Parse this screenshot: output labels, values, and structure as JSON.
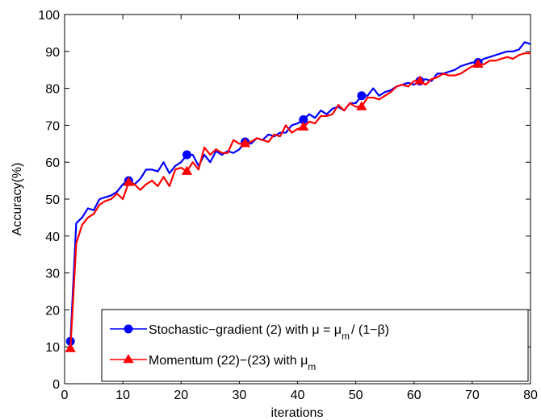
{
  "chart_data": {
    "type": "line",
    "xlabel": "iterations",
    "ylabel": "Accuracy(%)",
    "xlim": [
      0,
      80
    ],
    "ylim": [
      0,
      100
    ],
    "xticks": [
      0,
      10,
      20,
      30,
      40,
      50,
      60,
      70,
      80
    ],
    "yticks": [
      0,
      10,
      20,
      30,
      40,
      50,
      60,
      70,
      80,
      90,
      100
    ],
    "grid": false,
    "legend_position": "bottom-right",
    "series": [
      {
        "name": "Stochastic−gradient (2) with μ = μ",
        "name_sub": "m",
        "name_suffix": "/ (1−β)",
        "color": "#0000ff",
        "marker": "circle",
        "x": [
          1,
          2,
          3,
          4,
          5,
          6,
          7,
          8,
          9,
          10,
          11,
          12,
          13,
          14,
          15,
          16,
          17,
          18,
          19,
          20,
          21,
          22,
          23,
          24,
          25,
          26,
          27,
          28,
          29,
          30,
          31,
          32,
          33,
          34,
          35,
          36,
          37,
          38,
          39,
          40,
          41,
          42,
          43,
          44,
          45,
          46,
          47,
          48,
          49,
          50,
          51,
          52,
          53,
          54,
          55,
          56,
          57,
          58,
          59,
          60,
          61,
          62,
          63,
          64,
          65,
          66,
          67,
          68,
          69,
          70,
          71,
          72,
          73,
          74,
          75,
          76,
          77,
          78,
          79,
          80
        ],
        "y": [
          11.5,
          43.5,
          45,
          47.5,
          47,
          50,
          50.5,
          51,
          52,
          54,
          55,
          54,
          55.5,
          58,
          58,
          57.5,
          60,
          57,
          59,
          60,
          62,
          62,
          59,
          62,
          60,
          63,
          62,
          63,
          62.5,
          63.5,
          65.5,
          65,
          66.5,
          66,
          67.5,
          67,
          68,
          68,
          70,
          70.5,
          71.5,
          73,
          72,
          74,
          73,
          74.5,
          75,
          74,
          76,
          76,
          78,
          78,
          80,
          78,
          79,
          79.5,
          80.5,
          81,
          81.5,
          81,
          82,
          82.5,
          82,
          84,
          84,
          84.5,
          85,
          86,
          86.5,
          87,
          87,
          88,
          88.5,
          89,
          89.5,
          90,
          90,
          90.5,
          92.5,
          92
        ],
        "marker_x": [
          1,
          11,
          21,
          31,
          41,
          51,
          61,
          71
        ]
      },
      {
        "name": "Momentum (22)−(23) with  μ",
        "name_sub": "m",
        "name_suffix": "",
        "color": "#ff0000",
        "marker": "triangle",
        "x": [
          1,
          2,
          3,
          4,
          5,
          6,
          7,
          8,
          9,
          10,
          11,
          12,
          13,
          14,
          15,
          16,
          17,
          18,
          19,
          20,
          21,
          22,
          23,
          24,
          25,
          26,
          27,
          28,
          29,
          30,
          31,
          32,
          33,
          34,
          35,
          36,
          37,
          38,
          39,
          40,
          41,
          42,
          43,
          44,
          45,
          46,
          47,
          48,
          49,
          50,
          51,
          52,
          53,
          54,
          55,
          56,
          57,
          58,
          59,
          60,
          61,
          62,
          63,
          64,
          65,
          66,
          67,
          68,
          69,
          70,
          71,
          72,
          73,
          74,
          75,
          76,
          77,
          78,
          79,
          80
        ],
        "y": [
          9.5,
          38,
          43,
          45,
          46,
          48.5,
          49.5,
          50,
          51.5,
          50,
          54.5,
          54,
          52.5,
          54,
          55,
          53.5,
          56,
          53.5,
          58,
          58.5,
          57.5,
          60,
          58,
          64,
          62,
          63.5,
          62.5,
          62.5,
          66,
          65,
          65,
          65.5,
          66.5,
          66,
          65.5,
          67.5,
          67,
          70,
          68,
          69,
          69.5,
          71,
          70.5,
          72.5,
          72.5,
          73,
          75.5,
          74,
          76,
          75,
          75,
          77.5,
          77.5,
          77,
          78,
          79,
          80.5,
          81,
          80.5,
          82,
          82,
          81,
          82.5,
          83,
          84,
          83.5,
          83.5,
          84,
          85,
          86,
          86.5,
          86.5,
          87.5,
          87.5,
          88,
          88.5,
          88,
          89,
          89.5,
          89.5
        ],
        "marker_x": [
          1,
          11,
          21,
          31,
          41,
          51,
          61,
          71
        ]
      }
    ]
  }
}
